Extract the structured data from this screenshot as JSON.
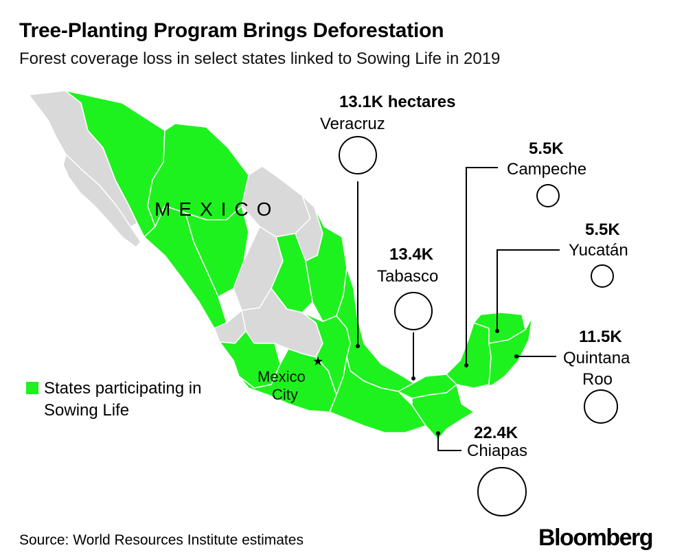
{
  "header": {
    "title": "Tree-Planting Program Brings Deforestation",
    "subtitle": "Forest coverage loss in select states linked to Sowing Life in 2019"
  },
  "map": {
    "country_label": "MEXICO",
    "city_label_line1": "Mexico",
    "city_label_line2": "City",
    "colors": {
      "participating": "#1ef21e",
      "other": "#d9d9d9",
      "border": "#ffffff"
    }
  },
  "states": [
    {
      "name": "Veracruz",
      "value_label": "13.1K hectares",
      "hectares": 13100
    },
    {
      "name": "Campeche",
      "value_label": "5.5K",
      "hectares": 5500
    },
    {
      "name": "Yucatán",
      "value_label": "5.5K",
      "hectares": 5500
    },
    {
      "name": "Tabasco",
      "value_label": "13.4K",
      "hectares": 13400
    },
    {
      "name": "Quintana",
      "name_line2": "Roo",
      "value_label": "11.5K",
      "hectares": 11500
    },
    {
      "name": "Chiapas",
      "value_label": "22.4K",
      "hectares": 22400
    }
  ],
  "legend": {
    "label": "States participating in Sowing Life"
  },
  "footer": {
    "source": "Source: World Resources Institute estimates",
    "brand": "Bloomberg"
  }
}
